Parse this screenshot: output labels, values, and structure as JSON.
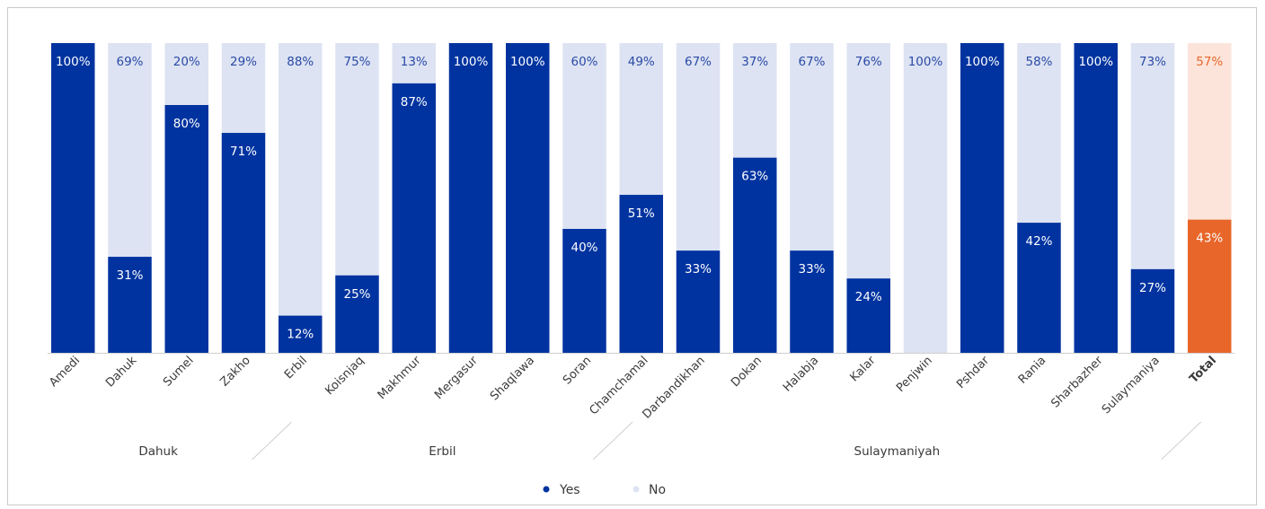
{
  "chart_data": {
    "type": "bar",
    "stacked": true,
    "categories": [
      "Amedi",
      "Dahuk",
      "Sumel",
      "Zakho",
      "Erbil",
      "Koisnjaq",
      "Makhmur",
      "Mergasur",
      "Shaqlawa",
      "Soran",
      "Chamchamal",
      "Darbandikhan",
      "Dokan",
      "Halabja",
      "Kalar",
      "Penjwin",
      "Pshdar",
      "Rania",
      "Sharbazher",
      "Sulaymaniya",
      "Total"
    ],
    "series": [
      {
        "name": "Yes",
        "values": [
          100,
          31,
          80,
          71,
          12,
          25,
          87,
          100,
          100,
          40,
          51,
          33,
          63,
          33,
          24,
          0,
          100,
          42,
          100,
          27,
          43
        ]
      },
      {
        "name": "No",
        "values": [
          0,
          69,
          20,
          29,
          88,
          75,
          13,
          0,
          0,
          60,
          49,
          67,
          37,
          67,
          76,
          100,
          0,
          58,
          0,
          73,
          57
        ]
      }
    ],
    "yes_labels": [
      "100%",
      "31%",
      "80%",
      "71%",
      "12%",
      "25%",
      "87%",
      "100%",
      "100%",
      "40%",
      "51%",
      "33%",
      "63%",
      "33%",
      "24%",
      "",
      "100%",
      "42%",
      "100%",
      "27%",
      "43%"
    ],
    "no_labels": [
      "",
      "69%",
      "20%",
      "29%",
      "88%",
      "75%",
      "13%",
      "",
      "",
      "60%",
      "49%",
      "67%",
      "37%",
      "67%",
      "76%",
      "100%",
      "",
      "58%",
      "",
      "73%",
      "57%"
    ],
    "groups": [
      {
        "name": "Dahuk",
        "start": 0,
        "end": 3
      },
      {
        "name": "Erbil",
        "start": 4,
        "end": 9
      },
      {
        "name": "Sulaymaniyah",
        "start": 10,
        "end": 19
      }
    ],
    "ylim": [
      0,
      100
    ],
    "grid": false,
    "legend": "bottom-center",
    "colors": {
      "yes": "#0033a0",
      "no": "#dde3f2",
      "total_yes": "#e8662a",
      "total_no": "#fce4da",
      "label_light": "#ffffff",
      "label_dark": "#2a4aa6",
      "total_no_label": "#e8662a"
    }
  },
  "legend": {
    "yes_label": "Yes",
    "no_label": "No"
  }
}
